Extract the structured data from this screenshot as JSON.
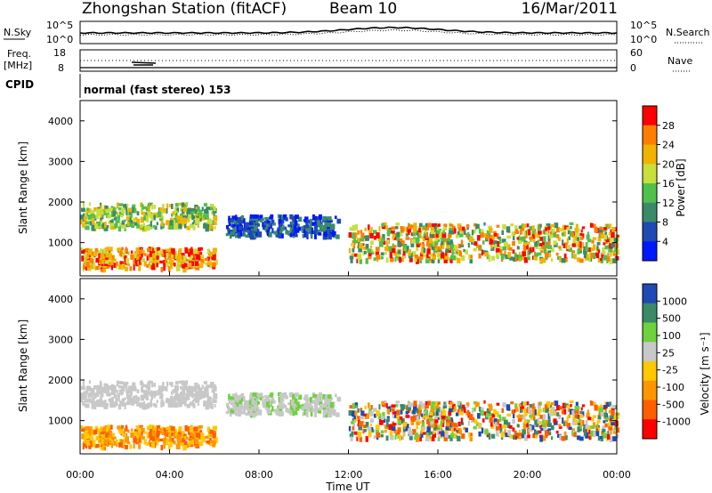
{
  "header": {
    "station": "Zhongshan Station (fitACF)",
    "beam": "Beam 10",
    "date": "16/Mar/2011"
  },
  "top_panel": {
    "left_label": "N.Sky",
    "right_label": "N.Search",
    "ticks_left": [
      "10^5",
      "10^0"
    ],
    "ticks_right": [
      "10^5",
      "10^0"
    ]
  },
  "freq_panel": {
    "left_label": "Freq.",
    "left_unit": "[MHz]",
    "right_label": "Nave",
    "ticks_left": [
      "18",
      "8"
    ],
    "ticks_right": [
      "60",
      "0"
    ]
  },
  "cpid": {
    "label": "CPID",
    "value": "normal (fast stereo) 153"
  },
  "colors": {
    "power": [
      "#0018ff",
      "#1f49b4",
      "#3a8a6a",
      "#4fc14a",
      "#c8df3c",
      "#f0b300",
      "#ff7e00",
      "#ff0000"
    ],
    "velocity": [
      "#ff0000",
      "#ff5e00",
      "#ff9600",
      "#ffc800",
      "#c8c8c8",
      "#6dd23c",
      "#3a8a6a",
      "#1f49b4"
    ]
  },
  "chart_data": [
    {
      "type": "heatmap",
      "name": "power",
      "ylabel": "Slant Range [km]",
      "colorbar_label": "Power [dB]",
      "colorbar_ticks": [
        "28",
        "24",
        "20",
        "16",
        "12",
        "8",
        "4"
      ],
      "ylim": [
        180,
        4500
      ],
      "y_ticks": [
        "4000",
        "3000",
        "2000",
        "1000"
      ],
      "xlim": [
        "00:00",
        "24:00"
      ],
      "x_ticks": [
        "00:00",
        "04:00",
        "08:00",
        "12:00",
        "16:00",
        "20:00",
        "00:00"
      ],
      "echo_regions": [
        {
          "t": [
            0.0,
            6.0
          ],
          "range_km": [
            1400,
            2000
          ],
          "level": "moderate"
        },
        {
          "t": [
            0.0,
            6.0
          ],
          "range_km": [
            400,
            900
          ],
          "level": "strong"
        },
        {
          "t": [
            6.5,
            11.5
          ],
          "range_km": [
            1200,
            1700
          ],
          "level": "weak"
        },
        {
          "t": [
            12.0,
            24.0
          ],
          "range_km": [
            600,
            1500
          ],
          "level": "strong"
        }
      ]
    },
    {
      "type": "heatmap",
      "name": "velocity",
      "ylabel": "Slant Range [km]",
      "xlabel": "Time UT",
      "colorbar_label": "Velocity [m s⁻¹]",
      "colorbar_ticks": [
        "1000",
        "500",
        "100",
        "25",
        "-25",
        "-100",
        "-500",
        "-1000"
      ],
      "ylim": [
        180,
        4500
      ],
      "y_ticks": [
        "4000",
        "3000",
        "2000",
        "1000"
      ],
      "xlim": [
        "00:00",
        "24:00"
      ],
      "x_ticks": [
        "00:00",
        "04:00",
        "08:00",
        "12:00",
        "16:00",
        "20:00",
        "00:00"
      ]
    }
  ]
}
